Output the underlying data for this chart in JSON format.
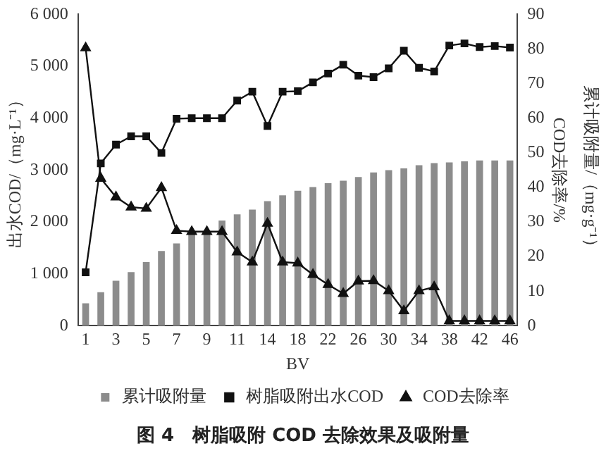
{
  "chart_data": {
    "type": "line",
    "title": "图 4　树脂吸附 COD 去除效果及吸附量",
    "xlabel": "BV",
    "ylabel": "出水COD/（mg·L⁻¹）",
    "y2label": "COD去除率/%",
    "y3label": "累计吸附量/（mg·g⁻¹）",
    "categories": [
      "1",
      null,
      "3",
      null,
      "5",
      null,
      "7",
      null,
      "9",
      null,
      "11",
      null,
      "14",
      null,
      "18",
      null,
      "22",
      null,
      "26",
      null,
      "30",
      null,
      "34",
      null,
      "38",
      null,
      "42",
      null,
      "46"
    ],
    "series": [
      {
        "name": "累计吸附量",
        "type": "bar",
        "axis": "y2",
        "color": "#8c8c8c",
        "values": [
          6.5,
          9.7,
          13,
          15.5,
          18.4,
          21.6,
          23.8,
          26.7,
          27,
          30.4,
          32.2,
          33.6,
          36,
          37.7,
          39,
          40.1,
          41.2,
          41.9,
          43,
          44.3,
          45,
          45.5,
          46.4,
          47,
          47.2,
          47.5,
          47.8,
          47.8,
          47.8
        ]
      },
      {
        "name": "树脂吸附出水COD",
        "axis": "y",
        "color": "#111111",
        "marker": "square",
        "values": [
          1030,
          3130,
          3490,
          3650,
          3650,
          3330,
          3990,
          4000,
          4000,
          4000,
          4340,
          4510,
          3850,
          4510,
          4520,
          4690,
          4860,
          5030,
          4820,
          4790,
          4960,
          5300,
          4970,
          4900,
          5400,
          5440,
          5370,
          5390,
          5360
        ]
      },
      {
        "name": "COD去除率",
        "axis": "y2",
        "color": "#111111",
        "marker": "triangle",
        "values": [
          80.3,
          42.6,
          37.2,
          34.3,
          33.9,
          39.9,
          27.5,
          27.2,
          27.2,
          27.2,
          21.3,
          18.4,
          29.6,
          18.4,
          18.1,
          14.8,
          11.9,
          9.3,
          12.9,
          13,
          10.1,
          4.3,
          10.1,
          11.2,
          1.4,
          1.4,
          1.4,
          1.4,
          1.4
        ]
      }
    ],
    "ylim": [
      0,
      6000
    ],
    "yticks": [
      0,
      {
        "value": 1000,
        "label": "1 000"
      },
      {
        "value": 2000,
        "label": "2 000"
      },
      {
        "value": 3000,
        "label": "3 000"
      },
      {
        "value": 4000,
        "label": "4 000"
      },
      {
        "value": 5000,
        "label": "5 000"
      },
      {
        "value": 6000,
        "label": "6 000"
      }
    ],
    "y2lim": [
      0,
      90
    ],
    "y2ticks": [
      0,
      10,
      20,
      30,
      40,
      50,
      60,
      70,
      80,
      90
    ],
    "grid": false,
    "legend": "bottom",
    "line_style": "solid"
  }
}
